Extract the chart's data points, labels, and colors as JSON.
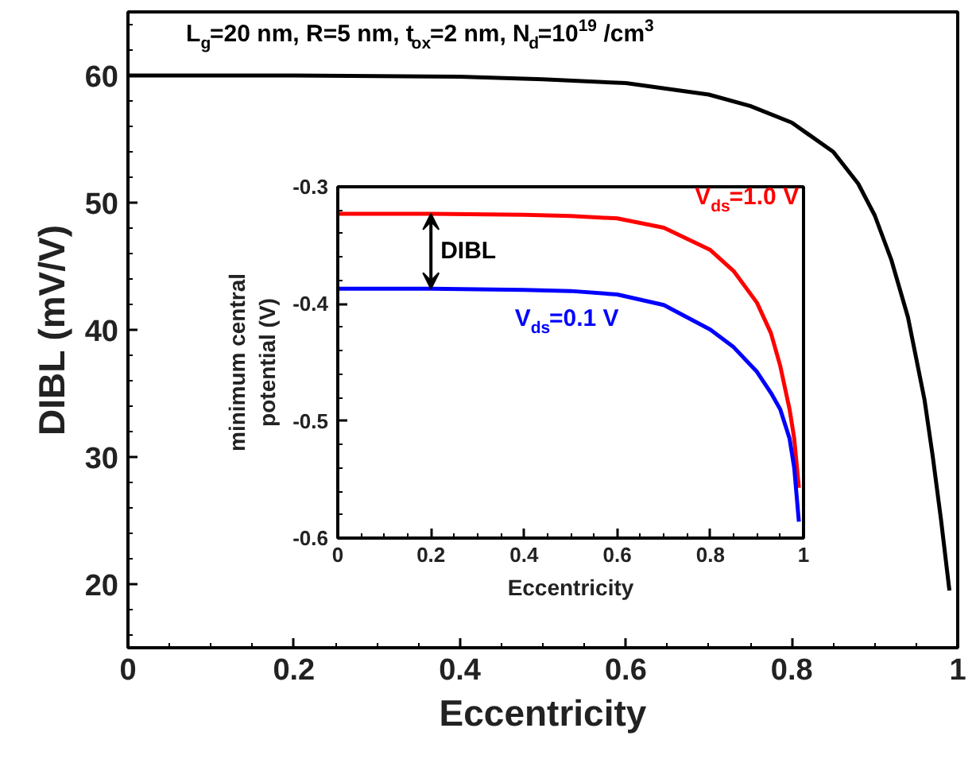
{
  "chart_data": [
    {
      "type": "line",
      "title": "L$_{g}$=20 nm, R=5 nm, t$_{ox}$=2 nm, N$_{d}$=10$^{19}$ /cm$^{3}$",
      "xlabel": "Eccentricity",
      "ylabel": "DIBL (mV/V)",
      "xlim": [
        0,
        1
      ],
      "ylim": [
        15,
        65
      ],
      "xticks": [
        0,
        0.2,
        0.4,
        0.6,
        0.8,
        1
      ],
      "yticks": [
        20,
        30,
        40,
        50,
        60
      ],
      "grid": false,
      "marker": "none",
      "line_style": "solid",
      "series": [
        {
          "color": "#000000",
          "x": [
            0,
            0.2,
            0.4,
            0.5,
            0.6,
            0.7,
            0.75,
            0.8,
            0.85,
            0.88,
            0.9,
            0.92,
            0.94,
            0.96,
            0.97,
            0.98,
            0.99
          ],
          "values": [
            60,
            60,
            59.9,
            59.7,
            59.4,
            58.5,
            57.6,
            56.3,
            54,
            51.5,
            49,
            45.5,
            41,
            34.5,
            30,
            25,
            19.5
          ]
        }
      ]
    },
    {
      "type": "line",
      "xlabel": "Eccentricity",
      "ylabel": "minimum central potential (V)",
      "xlim": [
        0,
        1
      ],
      "ylim": [
        -0.6,
        -0.3
      ],
      "xticks": [
        0,
        0.2,
        0.4,
        0.6,
        0.8,
        1
      ],
      "yticks": [
        -0.6,
        -0.5,
        -0.4,
        -0.3
      ],
      "grid": false,
      "marker": "none",
      "line_style": "solid",
      "annotations": [
        "DIBL"
      ],
      "series": [
        {
          "name": "V$_{ds}$=1.0 V",
          "color": "#ff0000",
          "x": [
            0,
            0.2,
            0.4,
            0.5,
            0.6,
            0.7,
            0.8,
            0.85,
            0.9,
            0.93,
            0.95,
            0.97,
            0.98,
            0.99
          ],
          "values": [
            -0.323,
            -0.323,
            -0.324,
            -0.325,
            -0.327,
            -0.335,
            -0.354,
            -0.372,
            -0.399,
            -0.425,
            -0.453,
            -0.49,
            -0.515,
            -0.557
          ]
        },
        {
          "name": "V$_{ds}$=0.1 V",
          "color": "#0000ff",
          "x": [
            0,
            0.2,
            0.4,
            0.5,
            0.6,
            0.7,
            0.8,
            0.85,
            0.9,
            0.93,
            0.95,
            0.97,
            0.98,
            0.99
          ],
          "values": [
            -0.387,
            -0.387,
            -0.388,
            -0.389,
            -0.392,
            -0.401,
            -0.422,
            -0.437,
            -0.458,
            -0.476,
            -0.49,
            -0.515,
            -0.54,
            -0.586
          ]
        }
      ]
    }
  ]
}
